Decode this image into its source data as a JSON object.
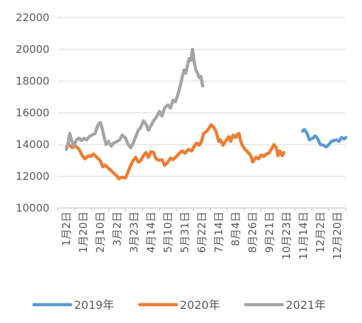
{
  "chart_data": {
    "type": "line",
    "title": "",
    "xlabel": "",
    "ylabel": "",
    "ylim": [
      10000,
      22000
    ],
    "yticks": [
      10000,
      12000,
      14000,
      16000,
      18000,
      20000,
      22000
    ],
    "grid": "horizontal",
    "legend_position": "bottom",
    "x": [
      "1月2日",
      "1月20日",
      "2月10日",
      "3月2日",
      "3月23日",
      "4月14日",
      "5月10日",
      "5月31日",
      "6月22日",
      "7月14日",
      "8月4日",
      "8月26日",
      "9月21日",
      "10月23日",
      "11月14日",
      "12月2日",
      "12月20日"
    ],
    "series": [
      {
        "name": "2019年",
        "color": "#5B9BD5",
        "points": [
          [
            13.95,
            14850
          ],
          [
            14.05,
            14950
          ],
          [
            14.2,
            14750
          ],
          [
            14.35,
            14300
          ],
          [
            14.55,
            14400
          ],
          [
            14.7,
            14550
          ],
          [
            14.85,
            14350
          ],
          [
            15.0,
            14000
          ],
          [
            15.2,
            13950
          ],
          [
            15.35,
            13850
          ],
          [
            15.5,
            14000
          ],
          [
            15.65,
            14200
          ],
          [
            15.8,
            14250
          ],
          [
            15.95,
            14300
          ],
          [
            16.1,
            14200
          ],
          [
            16.25,
            14450
          ],
          [
            16.4,
            14350
          ],
          [
            16.5,
            14450
          ]
        ]
      },
      {
        "name": "2020年",
        "color": "#ED7D31",
        "points": [
          [
            0.0,
            13800
          ],
          [
            0.15,
            14000
          ],
          [
            0.35,
            13800
          ],
          [
            0.55,
            13900
          ],
          [
            0.75,
            13700
          ],
          [
            0.95,
            13300
          ],
          [
            1.1,
            13100
          ],
          [
            1.3,
            13300
          ],
          [
            1.45,
            13250
          ],
          [
            1.6,
            13400
          ],
          [
            1.8,
            13200
          ],
          [
            2.0,
            13000
          ],
          [
            2.15,
            12600
          ],
          [
            2.3,
            12700
          ],
          [
            2.5,
            12500
          ],
          [
            2.7,
            12300
          ],
          [
            2.85,
            12150
          ],
          [
            3.0,
            12000
          ],
          [
            3.1,
            11850
          ],
          [
            3.3,
            11950
          ],
          [
            3.5,
            11900
          ],
          [
            3.65,
            12300
          ],
          [
            3.8,
            12700
          ],
          [
            3.95,
            13000
          ],
          [
            4.1,
            13200
          ],
          [
            4.25,
            12900
          ],
          [
            4.4,
            13000
          ],
          [
            4.55,
            13300
          ],
          [
            4.7,
            13500
          ],
          [
            4.85,
            13200
          ],
          [
            5.0,
            13550
          ],
          [
            5.15,
            13500
          ],
          [
            5.3,
            13100
          ],
          [
            5.5,
            13000
          ],
          [
            5.65,
            13050
          ],
          [
            5.8,
            12700
          ],
          [
            6.0,
            12900
          ],
          [
            6.15,
            13150
          ],
          [
            6.3,
            13050
          ],
          [
            6.5,
            13250
          ],
          [
            6.7,
            13500
          ],
          [
            6.85,
            13600
          ],
          [
            7.0,
            13450
          ],
          [
            7.2,
            13700
          ],
          [
            7.4,
            13600
          ],
          [
            7.55,
            13900
          ],
          [
            7.7,
            14100
          ],
          [
            7.85,
            13950
          ],
          [
            8.0,
            14250
          ],
          [
            8.1,
            14700
          ],
          [
            8.3,
            14850
          ],
          [
            8.4,
            15000
          ],
          [
            8.55,
            15250
          ],
          [
            8.7,
            15100
          ],
          [
            8.85,
            14800
          ],
          [
            9.0,
            14200
          ],
          [
            9.1,
            14300
          ],
          [
            9.25,
            13950
          ],
          [
            9.45,
            14300
          ],
          [
            9.6,
            14500
          ],
          [
            9.7,
            14200
          ],
          [
            9.85,
            14600
          ],
          [
            10.0,
            14450
          ],
          [
            10.1,
            14650
          ],
          [
            10.2,
            14700
          ],
          [
            10.3,
            14200
          ],
          [
            10.4,
            13950
          ],
          [
            10.55,
            13700
          ],
          [
            10.7,
            13550
          ],
          [
            10.9,
            13300
          ],
          [
            11.0,
            12900
          ],
          [
            11.2,
            13200
          ],
          [
            11.35,
            13100
          ],
          [
            11.5,
            13350
          ],
          [
            11.65,
            13250
          ],
          [
            11.8,
            13400
          ],
          [
            11.95,
            13450
          ],
          [
            12.1,
            13700
          ],
          [
            12.25,
            14000
          ],
          [
            12.4,
            13800
          ],
          [
            12.5,
            13300
          ],
          [
            12.6,
            13600
          ],
          [
            12.75,
            13300
          ],
          [
            12.85,
            13500
          ]
        ]
      },
      {
        "name": "2021年",
        "color": "#A5A5A5",
        "points": [
          [
            0.0,
            13700
          ],
          [
            0.1,
            14100
          ],
          [
            0.2,
            14700
          ],
          [
            0.3,
            14300
          ],
          [
            0.45,
            13900
          ],
          [
            0.6,
            14300
          ],
          [
            0.75,
            14400
          ],
          [
            0.9,
            14250
          ],
          [
            1.05,
            14400
          ],
          [
            1.2,
            14300
          ],
          [
            1.35,
            14500
          ],
          [
            1.5,
            14600
          ],
          [
            1.7,
            14700
          ],
          [
            1.85,
            15200
          ],
          [
            2.0,
            15400
          ],
          [
            2.1,
            15100
          ],
          [
            2.2,
            14600
          ],
          [
            2.35,
            14000
          ],
          [
            2.5,
            14200
          ],
          [
            2.65,
            13900
          ],
          [
            2.8,
            14100
          ],
          [
            3.0,
            14200
          ],
          [
            3.15,
            14300
          ],
          [
            3.3,
            14600
          ],
          [
            3.5,
            14400
          ],
          [
            3.65,
            14000
          ],
          [
            3.8,
            13800
          ],
          [
            3.95,
            14100
          ],
          [
            4.1,
            14500
          ],
          [
            4.25,
            14900
          ],
          [
            4.4,
            15100
          ],
          [
            4.55,
            15500
          ],
          [
            4.7,
            15300
          ],
          [
            4.85,
            14900
          ],
          [
            5.0,
            15200
          ],
          [
            5.15,
            15500
          ],
          [
            5.3,
            15700
          ],
          [
            5.5,
            16100
          ],
          [
            5.65,
            15800
          ],
          [
            5.8,
            16300
          ],
          [
            6.0,
            16500
          ],
          [
            6.15,
            16300
          ],
          [
            6.3,
            16800
          ],
          [
            6.45,
            16700
          ],
          [
            6.6,
            17200
          ],
          [
            6.75,
            17800
          ],
          [
            6.85,
            18300
          ],
          [
            6.95,
            18700
          ],
          [
            7.05,
            18500
          ],
          [
            7.15,
            19000
          ],
          [
            7.25,
            19400
          ],
          [
            7.35,
            19300
          ],
          [
            7.45,
            20000
          ],
          [
            7.55,
            19200
          ],
          [
            7.65,
            18700
          ],
          [
            7.75,
            18500
          ],
          [
            7.85,
            18200
          ],
          [
            7.95,
            18300
          ],
          [
            8.05,
            17700
          ]
        ]
      }
    ]
  }
}
